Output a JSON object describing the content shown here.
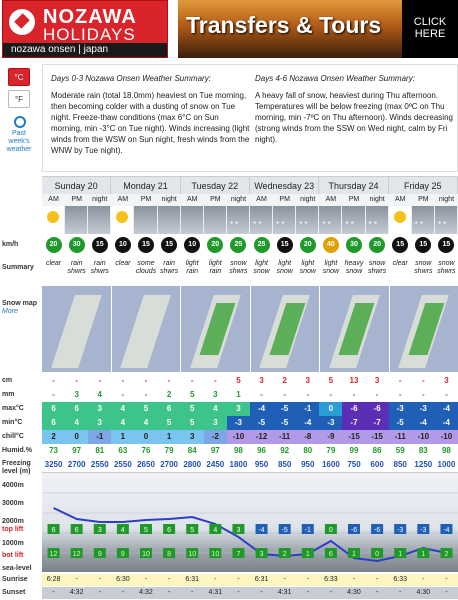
{
  "banners": {
    "left": {
      "brand_line1": "NOZAWA",
      "brand_line2": "HOLIDAYS",
      "tagline": "nozawa onsen | japan"
    },
    "right": {
      "title": "Transfers & Tours",
      "cta": "CLICK HERE"
    }
  },
  "side": {
    "celsius": "°C",
    "fahrenheit": "°F",
    "past_link": "Past week's weather"
  },
  "row_labels": {
    "wind": "km/h",
    "summary": "Summary",
    "snow_map": "Snow map",
    "snow_map_sub": "More",
    "snow_cm": "cm",
    "rain_mm": "mm",
    "max": "max°C",
    "min": "min°C",
    "chill": "chill°C",
    "humidity": "Humid.%",
    "freezing": "Freezing level (m)",
    "axis": [
      "5000m",
      "4000m",
      "3000m",
      "2000m",
      "1000m",
      "sea-level"
    ],
    "top": "top lift",
    "bot": "bot lift",
    "sunrise": "Sunrise",
    "sunset": "Sunset"
  },
  "summary": {
    "left_title": "Days 0-3 Nozawa Onsen Weather Summary:",
    "left_text": "Moderate rain (total 18.0mm) heaviest on Tue morning, then becoming colder with a dusting of snow on Tue night. Freeze-thaw conditions (max 6°C on Sun morning, min -3°C on Tue night). Winds increasing (light winds from the WSW on Sun night, fresh winds from the WNW by Tue night).",
    "right_title": "Days 4-6 Nozawa Onsen Weather Summary:",
    "right_text": "A heavy fall of snow, heaviest during Thu afternoon. Temperatures will be below freezing (max 0ºC on Thu morning, min -7ºC on Thu afternoon). Winds decreasing (strong winds from the SSW on Wed night, calm by Fri night)."
  },
  "days": [
    "Sunday 20",
    "Monday 21",
    "Tuesday 22",
    "Wednesday 23",
    "Thursday 24",
    "Friday 25"
  ],
  "periods": [
    "AM",
    "PM",
    "night",
    "AM",
    "PM",
    "night",
    "AM",
    "PM",
    "night",
    "AM",
    "PM",
    "night",
    "AM",
    "PM",
    "night",
    "AM",
    "PM",
    "night"
  ],
  "wind": [
    20,
    30,
    15,
    10,
    15,
    15,
    10,
    20,
    25,
    25,
    15,
    20,
    40,
    30,
    20,
    15,
    15,
    15
  ],
  "wind_colors": [
    "#1f9a2a",
    "#1f9a2a",
    "#111",
    "#111",
    "#111",
    "#111",
    "#111",
    "#1f9a2a",
    "#1f9a2a",
    "#1f9a2a",
    "#111",
    "#1f9a2a",
    "#e0a000",
    "#1f9a2a",
    "#1f9a2a",
    "#111",
    "#111",
    "#111"
  ],
  "summaries": [
    "clear",
    "rain shwrs",
    "rain shwrs",
    "clear",
    "some clouds",
    "rain shwrs",
    "light rain",
    "light rain",
    "snow shwrs",
    "light snow",
    "light snow",
    "light snow",
    "light snow",
    "heavy snow",
    "snow shwrs",
    "clear",
    "snow shwrs",
    "snow shwrs"
  ],
  "snow": [
    "-",
    "-",
    "-",
    "-",
    "-",
    "-",
    "-",
    "-",
    "5",
    "3",
    "2",
    "3",
    "5",
    "13",
    "3",
    "-",
    "-",
    "3"
  ],
  "rain": [
    "-",
    "3",
    "4",
    "-",
    "-",
    "2",
    "5",
    "3",
    "1",
    "-",
    "-",
    "-",
    "-",
    "-",
    "-",
    "-",
    "-",
    "-"
  ],
  "max": [
    "6",
    "6",
    "3",
    "4",
    "5",
    "6",
    "5",
    "4",
    "3",
    "-4",
    "-5",
    "-1",
    "0",
    "-6",
    "-6",
    "-3",
    "-3",
    "-4"
  ],
  "min": [
    "6",
    "4",
    "3",
    "4",
    "4",
    "5",
    "5",
    "3",
    "-3",
    "-5",
    "-5",
    "-4",
    "-3",
    "-7",
    "-7",
    "-5",
    "-4",
    "-4"
  ],
  "chill": [
    "2",
    "0",
    "-1",
    "1",
    "0",
    "1",
    "3",
    "-2",
    "-10",
    "-12",
    "-11",
    "-8",
    "-9",
    "-15",
    "-15",
    "-11",
    "-10",
    "-10"
  ],
  "humidity": [
    "73",
    "97",
    "81",
    "63",
    "76",
    "79",
    "84",
    "97",
    "98",
    "96",
    "92",
    "80",
    "79",
    "99",
    "86",
    "59",
    "83",
    "98"
  ],
  "freezing": [
    "3250",
    "2700",
    "2550",
    "2550",
    "2650",
    "2700",
    "2800",
    "2450",
    "1800",
    "950",
    "850",
    "950",
    "1600",
    "750",
    "600",
    "850",
    "1250",
    "1000"
  ],
  "chart_top_values": [
    "6",
    "6",
    "3",
    "4",
    "5",
    "6",
    "5",
    "4",
    "3",
    "-4",
    "-5",
    "-1",
    "0",
    "-6",
    "-6",
    "-3",
    "-3",
    "-4"
  ],
  "chart_bot_values": [
    "12",
    "12",
    "9",
    "9",
    "10",
    "8",
    "10",
    "10",
    "7",
    "3",
    "2",
    "1",
    "6",
    "1",
    "0",
    "1",
    "1",
    "2"
  ],
  "sunrise": [
    "6:28",
    "-",
    "-",
    "6:30",
    "-",
    "-",
    "6:31",
    "-",
    "-",
    "6:31",
    "-",
    "-",
    "6:33",
    "-",
    "-",
    "6:33",
    "-",
    "-"
  ],
  "sunset": [
    "-",
    "4:32",
    "-",
    "-",
    "4:32",
    "-",
    "-",
    "4:31",
    "-",
    "-",
    "4:31",
    "-",
    "-",
    "4:30",
    "-",
    "-",
    "4:30",
    "-"
  ]
}
